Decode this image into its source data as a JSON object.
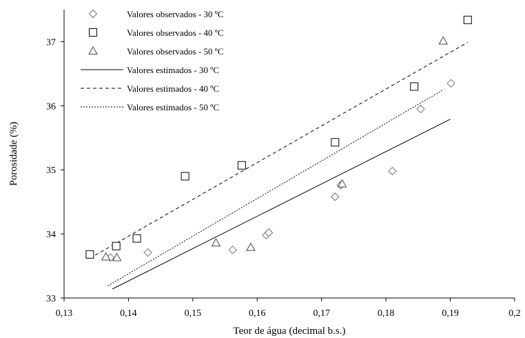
{
  "chart_data": {
    "type": "scatter",
    "title": "",
    "xlabel": "Teor de água (decimal  b.s.)",
    "ylabel": "Porosidade (%)",
    "xlim": [
      0.13,
      0.2
    ],
    "ylim": [
      33,
      37.5
    ],
    "x_ticks": [
      "0,13",
      "0,14",
      "0,15",
      "0,16",
      "0,17",
      "0,18",
      "0,19",
      "0,2"
    ],
    "y_ticks": [
      "33",
      "34",
      "35",
      "36",
      "37"
    ],
    "x_tick_values": [
      0.13,
      0.14,
      0.15,
      0.16,
      0.17,
      0.18,
      0.19,
      0.2
    ],
    "y_tick_values": [
      33,
      34,
      35,
      36,
      37
    ],
    "grid": false,
    "legend_position": "top-left",
    "series": [
      {
        "name": "Valores observados - 30 ºC",
        "kind": "points",
        "marker": "diamond",
        "x": [
          0.1372,
          0.143,
          0.1562,
          0.1614,
          0.1618,
          0.1721,
          0.173,
          0.181,
          0.1854,
          0.1901
        ],
        "y": [
          33.63,
          33.71,
          33.75,
          33.98,
          34.02,
          34.58,
          34.76,
          34.98,
          35.95,
          36.35
        ]
      },
      {
        "name": "Valores observados - 40 ºC",
        "kind": "points",
        "marker": "square",
        "x": [
          0.134,
          0.1381,
          0.1413,
          0.1488,
          0.1576,
          0.1721,
          0.1844,
          0.1927
        ],
        "y": [
          33.68,
          33.81,
          33.93,
          34.9,
          35.07,
          35.43,
          36.3,
          37.34
        ]
      },
      {
        "name": "Valores observados - 50 ºC",
        "kind": "points",
        "marker": "triangle",
        "x": [
          0.1365,
          0.1382,
          0.1536,
          0.159,
          0.1732,
          0.1889
        ],
        "y": [
          33.64,
          33.63,
          33.86,
          33.79,
          34.78,
          37.01
        ]
      },
      {
        "name": "Valores estimados - 30 ºC",
        "kind": "line",
        "dash": "solid",
        "x": [
          0.1375,
          0.19
        ],
        "y": [
          33.14,
          35.79
        ]
      },
      {
        "name": "Valores estimados - 40 ºC",
        "kind": "line",
        "dash": "dashed",
        "x": [
          0.134,
          0.1927
        ],
        "y": [
          33.62,
          36.99
        ]
      },
      {
        "name": "Valores estimados - 50 ºC",
        "kind": "line",
        "dash": "dotted",
        "x": [
          0.1368,
          0.1889
        ],
        "y": [
          33.19,
          36.25
        ]
      }
    ]
  }
}
